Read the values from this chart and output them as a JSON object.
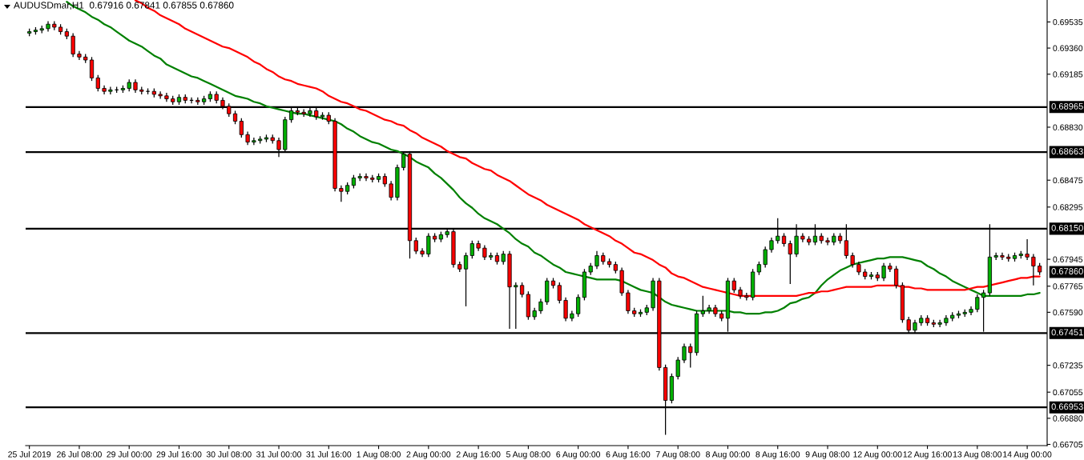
{
  "chart_data": {
    "type": "candlestick",
    "title": "AUDUSDmar,H1  0.67916 0.67841 0.67855 0.67860",
    "categories": [
      "25 Jul 2019",
      null,
      null,
      null,
      null,
      null,
      null,
      null,
      "26 Jul 08:00",
      null,
      null,
      null,
      null,
      null,
      null,
      null,
      "29 Jul 00:00",
      null,
      null,
      null,
      null,
      null,
      null,
      null,
      "29 Jul 16:00",
      null,
      null,
      null,
      null,
      null,
      null,
      null,
      "30 Jul 08:00",
      null,
      null,
      null,
      null,
      null,
      null,
      null,
      "31 Jul 00:00",
      null,
      null,
      null,
      null,
      null,
      null,
      null,
      "31 Jul 16:00",
      null,
      null,
      null,
      null,
      null,
      null,
      null,
      "1 Aug 08:00",
      null,
      null,
      null,
      null,
      null,
      null,
      null,
      "2 Aug 00:00",
      null,
      null,
      null,
      null,
      null,
      null,
      null,
      "2 Aug 16:00",
      null,
      null,
      null,
      null,
      null,
      null,
      null,
      "5 Aug 08:00",
      null,
      null,
      null,
      null,
      null,
      null,
      null,
      "6 Aug 00:00",
      null,
      null,
      null,
      null,
      null,
      null,
      null,
      "6 Aug 16:00",
      null,
      null,
      null,
      null,
      null,
      null,
      null,
      "7 Aug 08:00",
      null,
      null,
      null,
      null,
      null,
      null,
      null,
      "8 Aug 00:00",
      null,
      null,
      null,
      null,
      null,
      null,
      null,
      "8 Aug 16:00",
      null,
      null,
      null,
      null,
      null,
      null,
      null,
      "9 Aug 08:00",
      null,
      null,
      null,
      null,
      null,
      null,
      null,
      "12 Aug 00:00",
      null,
      null,
      null,
      null,
      null,
      null,
      null,
      "12 Aug 16:00",
      null,
      null,
      null,
      null,
      null,
      null,
      null,
      "13 Aug 08:00",
      null,
      null,
      null,
      null,
      null,
      null,
      null,
      "14 Aug 00:00",
      null,
      null
    ],
    "ohlc": [
      [
        0.6946,
        0.6949,
        0.6944,
        0.6947
      ],
      [
        0.6947,
        0.695,
        0.6945,
        0.6948
      ],
      [
        0.6948,
        0.6951,
        0.6946,
        0.6949
      ],
      [
        0.6949,
        0.6954,
        0.6947,
        0.6952
      ],
      [
        0.6952,
        0.6954,
        0.6948,
        0.695
      ],
      [
        0.695,
        0.6952,
        0.6945,
        0.6947
      ],
      [
        0.6947,
        0.6949,
        0.6942,
        0.6944
      ],
      [
        0.6944,
        0.6946,
        0.693,
        0.6932
      ],
      [
        0.6932,
        0.6934,
        0.6928,
        0.693
      ],
      [
        0.693,
        0.6932,
        0.6926,
        0.6928
      ],
      [
        0.6928,
        0.693,
        0.6914,
        0.6916
      ],
      [
        0.6916,
        0.6918,
        0.6907,
        0.6909
      ],
      [
        0.6909,
        0.6911,
        0.6905,
        0.6907
      ],
      [
        0.6907,
        0.691,
        0.6905,
        0.6908
      ],
      [
        0.6908,
        0.691,
        0.6906,
        0.6908
      ],
      [
        0.6908,
        0.6911,
        0.6906,
        0.6909
      ],
      [
        0.6909,
        0.6915,
        0.6907,
        0.6913
      ],
      [
        0.6913,
        0.6915,
        0.6906,
        0.6908
      ],
      [
        0.6908,
        0.691,
        0.6905,
        0.6907
      ],
      [
        0.6907,
        0.6909,
        0.6905,
        0.6907
      ],
      [
        0.6907,
        0.6909,
        0.6903,
        0.6905
      ],
      [
        0.6905,
        0.6907,
        0.6902,
        0.6904
      ],
      [
        0.6904,
        0.6906,
        0.69,
        0.6902
      ],
      [
        0.6902,
        0.6904,
        0.6898,
        0.69
      ],
      [
        0.69,
        0.6905,
        0.6898,
        0.6903
      ],
      [
        0.6903,
        0.6905,
        0.6899,
        0.6901
      ],
      [
        0.6901,
        0.6903,
        0.6899,
        0.6901
      ],
      [
        0.6901,
        0.6903,
        0.6898,
        0.69
      ],
      [
        0.69,
        0.6904,
        0.6898,
        0.6902
      ],
      [
        0.6902,
        0.6907,
        0.69,
        0.6905
      ],
      [
        0.6905,
        0.6907,
        0.6899,
        0.6901
      ],
      [
        0.6901,
        0.6903,
        0.6895,
        0.6897
      ],
      [
        0.6897,
        0.6899,
        0.689,
        0.6892
      ],
      [
        0.6892,
        0.6894,
        0.6885,
        0.6887
      ],
      [
        0.6887,
        0.6889,
        0.6876,
        0.6878
      ],
      [
        0.6878,
        0.688,
        0.6871,
        0.6873
      ],
      [
        0.6873,
        0.6876,
        0.6871,
        0.6874
      ],
      [
        0.6874,
        0.6877,
        0.6872,
        0.6875
      ],
      [
        0.6875,
        0.6878,
        0.6873,
        0.6876
      ],
      [
        0.6876,
        0.6878,
        0.6872,
        0.6874
      ],
      [
        0.6874,
        0.6876,
        0.6863,
        0.6868
      ],
      [
        0.6868,
        0.689,
        0.6866,
        0.6888
      ],
      [
        0.6888,
        0.6896,
        0.6886,
        0.6894
      ],
      [
        0.6894,
        0.6896,
        0.6891,
        0.6893
      ],
      [
        0.6893,
        0.6895,
        0.689,
        0.6892
      ],
      [
        0.6892,
        0.6896,
        0.689,
        0.6894
      ],
      [
        0.6894,
        0.6896,
        0.6888,
        0.689
      ],
      [
        0.689,
        0.6893,
        0.6888,
        0.6891
      ],
      [
        0.6891,
        0.6893,
        0.6885,
        0.6887
      ],
      [
        0.6887,
        0.6889,
        0.684,
        0.6842
      ],
      [
        0.6842,
        0.6844,
        0.6833,
        0.684
      ],
      [
        0.684,
        0.6846,
        0.6838,
        0.6844
      ],
      [
        0.6844,
        0.6851,
        0.6842,
        0.6849
      ],
      [
        0.6849,
        0.6852,
        0.6847,
        0.685
      ],
      [
        0.685,
        0.6852,
        0.6847,
        0.6849
      ],
      [
        0.6849,
        0.6851,
        0.6846,
        0.6848
      ],
      [
        0.6848,
        0.6852,
        0.6846,
        0.685
      ],
      [
        0.685,
        0.6852,
        0.6843,
        0.6845
      ],
      [
        0.6845,
        0.6847,
        0.6834,
        0.6836
      ],
      [
        0.6836,
        0.6858,
        0.6834,
        0.6856
      ],
      [
        0.6856,
        0.6866,
        0.6854,
        0.6865
      ],
      [
        0.6865,
        0.6867,
        0.6795,
        0.6807
      ],
      [
        0.6807,
        0.6809,
        0.6798,
        0.68
      ],
      [
        0.68,
        0.6802,
        0.6796,
        0.6798
      ],
      [
        0.6798,
        0.6812,
        0.6796,
        0.681
      ],
      [
        0.681,
        0.6812,
        0.6806,
        0.6808
      ],
      [
        0.6808,
        0.6813,
        0.6806,
        0.6811
      ],
      [
        0.6811,
        0.6815,
        0.6809,
        0.6813
      ],
      [
        0.6813,
        0.6815,
        0.6789,
        0.6791
      ],
      [
        0.6791,
        0.6793,
        0.6786,
        0.6788
      ],
      [
        0.6788,
        0.6799,
        0.6763,
        0.6797
      ],
      [
        0.6797,
        0.6807,
        0.6795,
        0.6805
      ],
      [
        0.6805,
        0.6807,
        0.68,
        0.6802
      ],
      [
        0.6802,
        0.6804,
        0.6794,
        0.6796
      ],
      [
        0.6796,
        0.6799,
        0.6794,
        0.6797
      ],
      [
        0.6797,
        0.6799,
        0.6791,
        0.6793
      ],
      [
        0.6793,
        0.68,
        0.6791,
        0.6798
      ],
      [
        0.6798,
        0.68,
        0.6748,
        0.6776
      ],
      [
        0.6776,
        0.6779,
        0.6748,
        0.6777
      ],
      [
        0.6777,
        0.6779,
        0.6769,
        0.6771
      ],
      [
        0.6771,
        0.6773,
        0.6754,
        0.6756
      ],
      [
        0.6756,
        0.6762,
        0.6754,
        0.676
      ],
      [
        0.676,
        0.6768,
        0.6758,
        0.6766
      ],
      [
        0.6766,
        0.6782,
        0.6764,
        0.678
      ],
      [
        0.678,
        0.6782,
        0.6775,
        0.6777
      ],
      [
        0.6777,
        0.6779,
        0.6765,
        0.6767
      ],
      [
        0.6767,
        0.6769,
        0.6753,
        0.6755
      ],
      [
        0.6755,
        0.676,
        0.6753,
        0.6758
      ],
      [
        0.6758,
        0.6771,
        0.6756,
        0.6769
      ],
      [
        0.6769,
        0.6788,
        0.6767,
        0.6786
      ],
      [
        0.6786,
        0.6792,
        0.6784,
        0.679
      ],
      [
        0.679,
        0.68,
        0.6788,
        0.6797
      ],
      [
        0.6797,
        0.6799,
        0.6791,
        0.6793
      ],
      [
        0.6793,
        0.6795,
        0.6789,
        0.6791
      ],
      [
        0.6791,
        0.6793,
        0.6785,
        0.6787
      ],
      [
        0.6787,
        0.6789,
        0.677,
        0.6772
      ],
      [
        0.6772,
        0.6774,
        0.6758,
        0.676
      ],
      [
        0.676,
        0.6762,
        0.6756,
        0.6758
      ],
      [
        0.6758,
        0.6761,
        0.6756,
        0.6759
      ],
      [
        0.6759,
        0.6764,
        0.6757,
        0.6762
      ],
      [
        0.6762,
        0.6782,
        0.676,
        0.678
      ],
      [
        0.678,
        0.6782,
        0.672,
        0.6722
      ],
      [
        0.6722,
        0.6724,
        0.6677,
        0.67
      ],
      [
        0.67,
        0.6718,
        0.6698,
        0.6716
      ],
      [
        0.6716,
        0.6729,
        0.6714,
        0.6727
      ],
      [
        0.6727,
        0.6738,
        0.6725,
        0.6736
      ],
      [
        0.6736,
        0.6738,
        0.6722,
        0.6732
      ],
      [
        0.6732,
        0.676,
        0.673,
        0.6758
      ],
      [
        0.6758,
        0.677,
        0.6756,
        0.676
      ],
      [
        0.676,
        0.6764,
        0.6758,
        0.6762
      ],
      [
        0.6762,
        0.6764,
        0.6756,
        0.6758
      ],
      [
        0.6758,
        0.676,
        0.6753,
        0.6755
      ],
      [
        0.6755,
        0.6782,
        0.6746,
        0.678
      ],
      [
        0.678,
        0.6782,
        0.6772,
        0.6774
      ],
      [
        0.6774,
        0.6776,
        0.6768,
        0.677
      ],
      [
        0.677,
        0.6772,
        0.6767,
        0.6769
      ],
      [
        0.6769,
        0.6788,
        0.6767,
        0.6786
      ],
      [
        0.6786,
        0.6793,
        0.6784,
        0.6791
      ],
      [
        0.6791,
        0.6803,
        0.6789,
        0.6801
      ],
      [
        0.6801,
        0.6809,
        0.6799,
        0.6807
      ],
      [
        0.6807,
        0.6822,
        0.6805,
        0.681
      ],
      [
        0.681,
        0.6812,
        0.6803,
        0.6805
      ],
      [
        0.6805,
        0.6807,
        0.6778,
        0.6798
      ],
      [
        0.6798,
        0.6818,
        0.6796,
        0.681
      ],
      [
        0.681,
        0.6812,
        0.6806,
        0.6808
      ],
      [
        0.6808,
        0.681,
        0.6804,
        0.6806
      ],
      [
        0.6806,
        0.6818,
        0.6804,
        0.681
      ],
      [
        0.681,
        0.6812,
        0.6805,
        0.6807
      ],
      [
        0.6807,
        0.6809,
        0.6804,
        0.6806
      ],
      [
        0.6806,
        0.6812,
        0.6804,
        0.681
      ],
      [
        0.681,
        0.6812,
        0.6805,
        0.6807
      ],
      [
        0.6807,
        0.6818,
        0.6795,
        0.6797
      ],
      [
        0.6797,
        0.6799,
        0.6789,
        0.6791
      ],
      [
        0.6791,
        0.6793,
        0.6784,
        0.6786
      ],
      [
        0.6786,
        0.6788,
        0.6781,
        0.6783
      ],
      [
        0.6783,
        0.6786,
        0.6781,
        0.6784
      ],
      [
        0.6784,
        0.6786,
        0.678,
        0.6782
      ],
      [
        0.6782,
        0.6792,
        0.678,
        0.679
      ],
      [
        0.679,
        0.6792,
        0.6786,
        0.6788
      ],
      [
        0.6788,
        0.679,
        0.6775,
        0.6777
      ],
      [
        0.6777,
        0.6779,
        0.6752,
        0.6754
      ],
      [
        0.6754,
        0.6756,
        0.6745,
        0.6747
      ],
      [
        0.6747,
        0.6754,
        0.6745,
        0.6752
      ],
      [
        0.6752,
        0.6757,
        0.675,
        0.6755
      ],
      [
        0.6755,
        0.6757,
        0.675,
        0.6752
      ],
      [
        0.6752,
        0.6754,
        0.6749,
        0.6751
      ],
      [
        0.6751,
        0.6754,
        0.6749,
        0.6752
      ],
      [
        0.6752,
        0.6757,
        0.675,
        0.6755
      ],
      [
        0.6755,
        0.6759,
        0.6753,
        0.6757
      ],
      [
        0.6757,
        0.676,
        0.6755,
        0.6758
      ],
      [
        0.6758,
        0.6761,
        0.6756,
        0.6759
      ],
      [
        0.6759,
        0.6763,
        0.6757,
        0.6761
      ],
      [
        0.6761,
        0.6771,
        0.6759,
        0.6769
      ],
      [
        0.6769,
        0.6774,
        0.6746,
        0.6772
      ],
      [
        0.6772,
        0.6818,
        0.677,
        0.6796
      ],
      [
        0.6796,
        0.6799,
        0.6794,
        0.6797
      ],
      [
        0.6797,
        0.6799,
        0.6794,
        0.6796
      ],
      [
        0.6796,
        0.6798,
        0.6793,
        0.6795
      ],
      [
        0.6795,
        0.6799,
        0.6793,
        0.6797
      ],
      [
        0.6797,
        0.68,
        0.6795,
        0.6798
      ],
      [
        0.6798,
        0.6808,
        0.6794,
        0.6796
      ],
      [
        0.6796,
        0.6798,
        0.6777,
        0.679
      ],
      [
        0.679,
        0.6792,
        0.6784,
        0.6786
      ]
    ],
    "series": [
      {
        "type": "line",
        "color": "#008000",
        "values": [
          null,
          null,
          null,
          null,
          null,
          null,
          0.6967,
          0.6964,
          0.6962,
          0.696,
          0.6957,
          0.6955,
          0.6952,
          0.695,
          0.6947,
          0.6944,
          0.6941,
          0.6939,
          0.6937,
          0.6934,
          0.6931,
          0.6929,
          0.6925,
          0.6923,
          0.6921,
          0.6919,
          0.6917,
          0.6916,
          0.6914,
          0.6912,
          0.691,
          0.6908,
          0.6906,
          0.6904,
          0.6903,
          0.6902,
          0.69,
          0.6899,
          0.6897,
          0.6896,
          0.6895,
          0.6894,
          0.6893,
          0.6892,
          0.6892,
          0.6891,
          0.689,
          0.6889,
          0.6888,
          0.6887,
          0.6885,
          0.6882,
          0.688,
          0.6877,
          0.6875,
          0.6873,
          0.6872,
          0.687,
          0.6868,
          0.6867,
          0.6865,
          0.6863,
          0.686,
          0.6858,
          0.6856,
          0.6852,
          0.6849,
          0.6845,
          0.6841,
          0.6836,
          0.6832,
          0.6829,
          0.6825,
          0.6822,
          0.682,
          0.6818,
          0.6815,
          0.6812,
          0.6808,
          0.6805,
          0.6803,
          0.6799,
          0.6797,
          0.6794,
          0.6791,
          0.6789,
          0.6786,
          0.6785,
          0.6784,
          0.6783,
          0.6782,
          0.6781,
          0.6781,
          0.6781,
          0.6781,
          0.678,
          0.6778,
          0.6776,
          0.6774,
          0.6773,
          0.6772,
          0.6769,
          0.6766,
          0.6764,
          0.6763,
          0.6762,
          0.6761,
          0.676,
          0.676,
          0.676,
          0.676,
          0.676,
          0.676,
          0.6759,
          0.6759,
          0.6758,
          0.6758,
          0.6758,
          0.6759,
          0.6759,
          0.676,
          0.6762,
          0.6765,
          0.6766,
          0.6768,
          0.6769,
          0.6772,
          0.6777,
          0.6781,
          0.6784,
          0.6787,
          0.6789,
          0.6791,
          0.6792,
          0.6793,
          0.6794,
          0.6795,
          0.6795,
          0.6796,
          0.6796,
          0.6796,
          0.6795,
          0.6794,
          0.6793,
          0.679,
          0.6788,
          0.6785,
          0.6783,
          0.678,
          0.6778,
          0.6776,
          0.6774,
          0.6772,
          0.677,
          0.677,
          0.677,
          0.677,
          0.677,
          0.677,
          0.677,
          0.6771,
          0.6771,
          0.6772
        ]
      },
      {
        "type": "line",
        "color": "#ff0000",
        "values": [
          null,
          null,
          null,
          null,
          null,
          null,
          null,
          null,
          null,
          null,
          null,
          null,
          null,
          null,
          null,
          null,
          null,
          0.6968,
          0.6966,
          0.6963,
          0.6961,
          0.6958,
          0.6956,
          0.6954,
          0.6952,
          0.6949,
          0.6947,
          0.6945,
          0.6943,
          0.6941,
          0.6939,
          0.6937,
          0.6936,
          0.6934,
          0.6932,
          0.693,
          0.6927,
          0.6925,
          0.6922,
          0.692,
          0.6917,
          0.6915,
          0.6914,
          0.6912,
          0.6911,
          0.691,
          0.6909,
          0.6907,
          0.6904,
          0.6902,
          0.69,
          0.6899,
          0.6897,
          0.6895,
          0.6894,
          0.6892,
          0.689,
          0.6888,
          0.6887,
          0.6885,
          0.6884,
          0.6881,
          0.6879,
          0.6876,
          0.6874,
          0.6872,
          0.687,
          0.6867,
          0.6865,
          0.6863,
          0.6862,
          0.6859,
          0.6857,
          0.6855,
          0.6854,
          0.6851,
          0.6849,
          0.6847,
          0.6844,
          0.6841,
          0.6838,
          0.6836,
          0.6834,
          0.6831,
          0.6829,
          0.6827,
          0.6825,
          0.6823,
          0.6821,
          0.6818,
          0.6816,
          0.6814,
          0.6812,
          0.681,
          0.6807,
          0.6805,
          0.6802,
          0.6799,
          0.6798,
          0.6796,
          0.6794,
          0.6791,
          0.6789,
          0.6785,
          0.6783,
          0.6782,
          0.678,
          0.6778,
          0.6776,
          0.6775,
          0.6774,
          0.6773,
          0.6772,
          0.6771,
          0.677,
          0.677,
          0.677,
          0.677,
          0.677,
          0.677,
          0.677,
          0.677,
          0.677,
          0.677,
          0.6771,
          0.6772,
          0.6772,
          0.6773,
          0.6773,
          0.6774,
          0.6775,
          0.6776,
          0.6776,
          0.6776,
          0.6776,
          0.6776,
          0.6777,
          0.6777,
          0.6777,
          0.6777,
          0.6776,
          0.6776,
          0.6775,
          0.6775,
          0.6774,
          0.6774,
          0.6774,
          0.6774,
          0.6774,
          0.6774,
          0.6774,
          0.6775,
          0.6776,
          0.6776,
          0.6777,
          0.6778,
          0.6779,
          0.678,
          0.6781,
          0.6782,
          0.6782,
          0.6783,
          0.6783
        ]
      }
    ],
    "ylim": [
      0.66697,
      0.69682
    ],
    "yticks": [
      0.69535,
      {
        "value": 0.6936,
        "label": "0.69360"
      },
      0.69185,
      {
        "value": 0.6883,
        "label": "0.68830"
      },
      0.68475,
      0.68295,
      0.67945,
      0.67765,
      {
        "value": 0.6759,
        "label": "0.67590"
      },
      0.67235,
      0.67055,
      {
        "value": 0.6688,
        "label": "0.66880"
      },
      0.66705
    ],
    "ref_lines": [
      {
        "axis": "y",
        "value": 0.68965,
        "label": "0.68965",
        "color": "#000000"
      },
      {
        "axis": "y",
        "value": 0.68663,
        "label": "0.68663",
        "color": "#000000"
      },
      {
        "axis": "y",
        "value": 0.6815,
        "label": "0.68150",
        "color": "#000000"
      },
      {
        "axis": "y",
        "value": 0.67451,
        "label": "0.67451",
        "color": "#000000"
      },
      {
        "axis": "y",
        "value": 0.66953,
        "label": "0.66953",
        "color": "#000000"
      }
    ],
    "annotations": [
      "0.67860"
    ]
  }
}
